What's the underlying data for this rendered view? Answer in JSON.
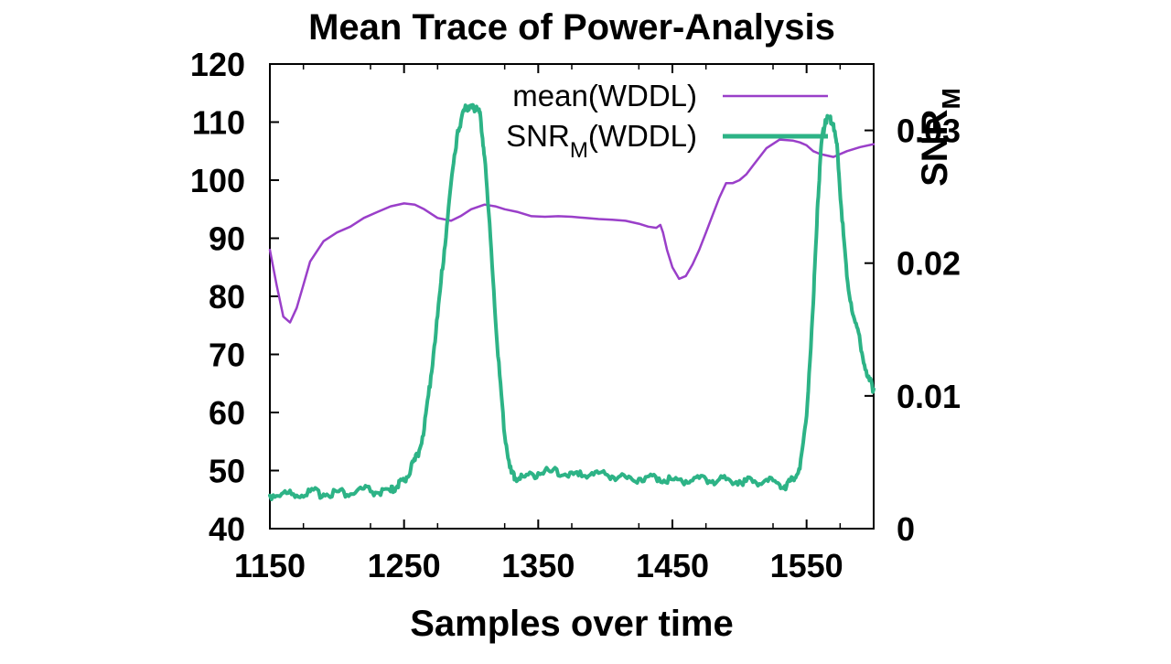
{
  "chart_data": {
    "type": "line",
    "title": "Mean Trace of Power-Analysis",
    "xlabel": "Samples over time",
    "ylabel": "",
    "y2label": {
      "main": "SNR",
      "sub": "M"
    },
    "xlim": [
      1150,
      1600
    ],
    "ylim": [
      40,
      120
    ],
    "y2lim": [
      0,
      0.035
    ],
    "x_ticks": [
      1150,
      1250,
      1350,
      1450,
      1550
    ],
    "x_tick_labels": [
      "1150",
      "1250",
      "1350",
      "1450",
      "1550"
    ],
    "y_ticks": [
      40,
      50,
      60,
      70,
      80,
      90,
      100,
      110,
      120
    ],
    "y_tick_labels": [
      "40",
      "50",
      "60",
      "70",
      "80",
      "90",
      "100",
      "110",
      "120"
    ],
    "y2_ticks": [
      0,
      0.01,
      0.02,
      0.03
    ],
    "y2_tick_labels": [
      "0",
      "0.01",
      "0.02",
      "0.03"
    ],
    "grid": false,
    "legend_position": "top-right",
    "series": [
      {
        "name": "mean(WDDL)",
        "legend_main": "mean(WDDL)",
        "legend_sub": "",
        "axis": "left",
        "color": "#9a3fc9",
        "x": [
          1150,
          1155,
          1160,
          1165,
          1170,
          1175,
          1180,
          1190,
          1200,
          1210,
          1220,
          1230,
          1240,
          1250,
          1258,
          1265,
          1275,
          1285,
          1292,
          1300,
          1310,
          1318,
          1325,
          1335,
          1345,
          1355,
          1365,
          1375,
          1385,
          1395,
          1405,
          1415,
          1425,
          1432,
          1438,
          1441,
          1443,
          1446,
          1450,
          1455,
          1460,
          1465,
          1470,
          1475,
          1480,
          1485,
          1490,
          1495,
          1500,
          1505,
          1510,
          1520,
          1530,
          1540,
          1545,
          1550,
          1555,
          1560,
          1570,
          1580,
          1590,
          1600
        ],
        "y": [
          88,
          82,
          76.5,
          75.5,
          78,
          82,
          86,
          89.5,
          91,
          92,
          93.5,
          94.5,
          95.5,
          96,
          95.8,
          95,
          93.5,
          93,
          93.8,
          95,
          95.8,
          95.5,
          95,
          94.5,
          93.8,
          93.7,
          93.8,
          93.7,
          93.5,
          93.3,
          93.2,
          93,
          92.5,
          92,
          91.8,
          92.3,
          91,
          88,
          85,
          83,
          83.5,
          85.5,
          88,
          91,
          94,
          97,
          99.5,
          99.5,
          100,
          101,
          102.5,
          105.5,
          107,
          106.8,
          106.5,
          106,
          105,
          104.5,
          104,
          105,
          105.7,
          106.2
        ]
      },
      {
        "name": "SNR_M(WDDL)",
        "legend_main": "SNR",
        "legend_sub": "M",
        "legend_suffix": "(WDDL)",
        "axis": "right",
        "color": "#2db386",
        "x": [
          1150,
          1160,
          1170,
          1180,
          1190,
          1200,
          1210,
          1220,
          1230,
          1240,
          1245,
          1250,
          1255,
          1260,
          1265,
          1270,
          1275,
          1280,
          1285,
          1290,
          1295,
          1298,
          1301,
          1304,
          1307,
          1310,
          1315,
          1320,
          1325,
          1330,
          1333,
          1340,
          1350,
          1360,
          1370,
          1380,
          1390,
          1400,
          1410,
          1420,
          1430,
          1440,
          1450,
          1460,
          1470,
          1480,
          1490,
          1500,
          1510,
          1520,
          1530,
          1535,
          1540,
          1545,
          1550,
          1555,
          1558,
          1561,
          1564,
          1567,
          1570,
          1573,
          1576,
          1580,
          1585,
          1590,
          1595,
          1600
        ],
        "y": [
          0.0025,
          0.0027,
          0.0025,
          0.0028,
          0.0026,
          0.0028,
          0.0026,
          0.003,
          0.0027,
          0.0028,
          0.0032,
          0.0036,
          0.0045,
          0.0055,
          0.0075,
          0.0115,
          0.016,
          0.021,
          0.026,
          0.03,
          0.0315,
          0.0318,
          0.0317,
          0.0318,
          0.031,
          0.028,
          0.021,
          0.013,
          0.007,
          0.0042,
          0.0038,
          0.0039,
          0.0042,
          0.0043,
          0.0041,
          0.004,
          0.0042,
          0.0041,
          0.0039,
          0.0037,
          0.0039,
          0.0038,
          0.0037,
          0.0036,
          0.0038,
          0.0036,
          0.0037,
          0.0036,
          0.0035,
          0.0037,
          0.0033,
          0.0032,
          0.0038,
          0.0045,
          0.0085,
          0.017,
          0.024,
          0.029,
          0.0308,
          0.031,
          0.0305,
          0.0285,
          0.024,
          0.019,
          0.016,
          0.014,
          0.0115,
          0.0105
        ]
      }
    ]
  }
}
